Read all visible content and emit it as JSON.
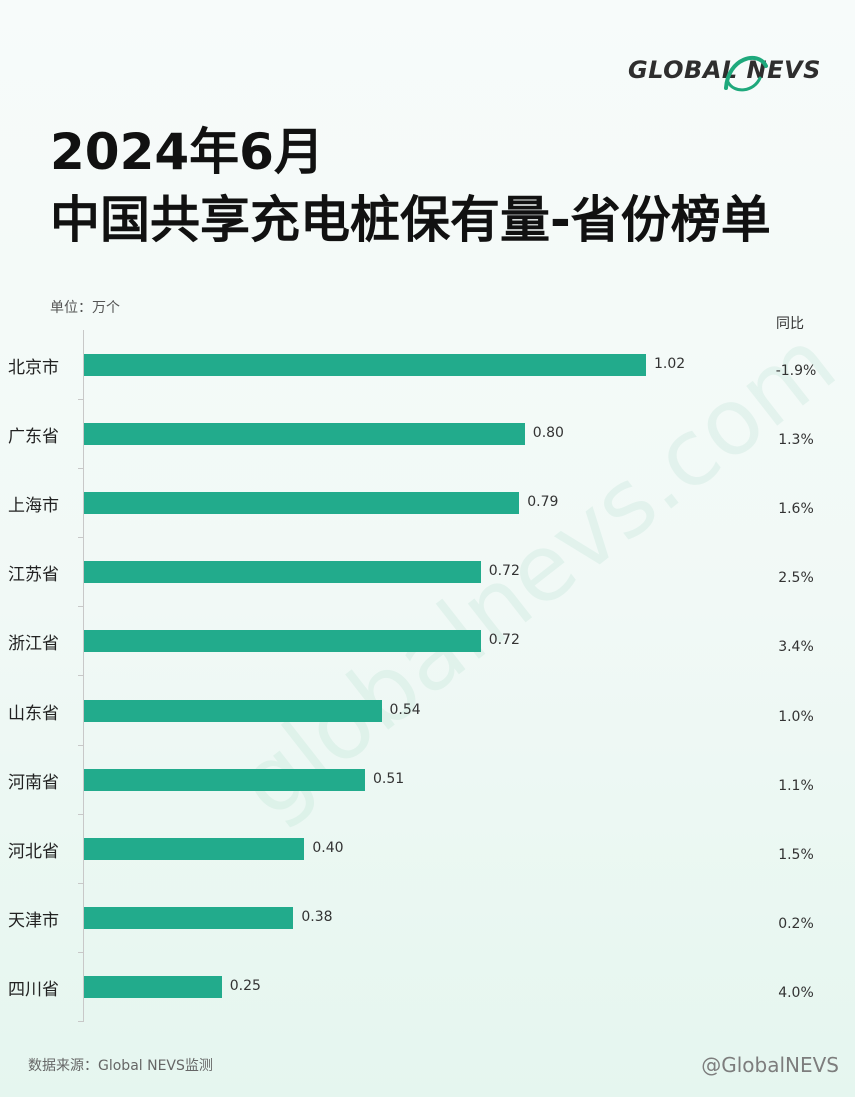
{
  "logo": {
    "text": "GLOBAL NEVS"
  },
  "title": {
    "line1": "2024年6月",
    "line2": "中国共享充电桩保有量-省份榜单"
  },
  "unit_label": "单位：万个",
  "yoy_header": "同比",
  "watermark": "globalnevs.com",
  "source": "数据来源：Global NEVS监测",
  "footer_mark": "@GlobalNEVS",
  "colors": {
    "bar": "#22ab8c",
    "text": "#222222"
  },
  "chart_data": {
    "type": "bar",
    "orientation": "horizontal",
    "title": "中国共享充电桩保有量-省份榜单",
    "unit": "万个",
    "xlim": [
      0,
      1.02
    ],
    "categories": [
      "北京市",
      "广东省",
      "上海市",
      "江苏省",
      "浙江省",
      "山东省",
      "河南省",
      "河北省",
      "天津市",
      "四川省"
    ],
    "values": [
      1.02,
      0.8,
      0.79,
      0.72,
      0.72,
      0.54,
      0.51,
      0.4,
      0.38,
      0.25
    ],
    "value_labels": [
      "1.02",
      "0.80",
      "0.79",
      "0.72",
      "0.72",
      "0.54",
      "0.51",
      "0.40",
      "0.38",
      "0.25"
    ],
    "yoy": [
      "-1.9%",
      "1.3%",
      "1.6%",
      "2.5%",
      "3.4%",
      "1.0%",
      "1.1%",
      "1.5%",
      "0.2%",
      "4.0%"
    ]
  }
}
